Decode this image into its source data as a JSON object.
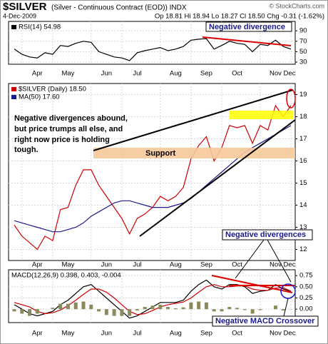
{
  "header": {
    "symbol": "$SILVER",
    "description": "(Silver - Continuous Contract (EOD)) INDX",
    "date": "4-Dec-2009",
    "quote": "Op 18.81 Hi 18.94 Lo 18.27 Cl 18.50 Chg -0.31 (-1.62%)",
    "credit": "© StockCharts.com"
  },
  "annotations": {
    "rsi_note": "Negative divergence",
    "price_note": [
      "Negative divergences abound,",
      "but price trumps all else, and",
      "right now price is holding",
      "tough."
    ],
    "support": "Support",
    "macd_note": "Negative divergences",
    "crossover_note": "Negative MACD Crossover"
  },
  "chart_data": [
    {
      "type": "line",
      "series": [
        {
          "name": "RSI(14) 54.98",
          "color": "#000000",
          "values": [
            55,
            45,
            40,
            38,
            48,
            45,
            62,
            60,
            66,
            70,
            68,
            50,
            45,
            40,
            38,
            33,
            48,
            52,
            55,
            58,
            52,
            55,
            60,
            72,
            74,
            75,
            55,
            62,
            70,
            66,
            64,
            50,
            64,
            62,
            72,
            60,
            55
          ]
        }
      ],
      "ylim": [
        26,
        108
      ],
      "yticks": [
        30,
        50,
        70,
        90
      ],
      "grid": true
    },
    {
      "type": "line",
      "categories": [
        null,
        "Apr",
        null,
        null,
        null,
        "May",
        null,
        null,
        null,
        null,
        "Jun",
        null,
        null,
        null,
        "Jul",
        null,
        null,
        null,
        null,
        "Aug",
        null,
        null,
        null,
        "Sep",
        null,
        null,
        null,
        "Oct",
        null,
        null,
        null,
        null,
        "Nov",
        null,
        null,
        null,
        "Dec"
      ],
      "series": [
        {
          "name": "$SILVER (Daily) 18.50",
          "color": "#cc0000",
          "values": [
            13.1,
            12.6,
            12.3,
            12.0,
            12.6,
            12.4,
            13.8,
            13.9,
            14.9,
            15.6,
            15.6,
            14.9,
            14.4,
            13.9,
            13.4,
            12.7,
            13.4,
            13.6,
            13.9,
            14.4,
            14.2,
            14.4,
            14.8,
            16.1,
            16.7,
            17.1,
            16.0,
            16.6,
            17.6,
            17.5,
            17.6,
            16.8,
            17.6,
            17.4,
            18.5,
            18.0,
            18.5
          ]
        },
        {
          "name": "MA(50) 17.60",
          "color": "#1a1a8c",
          "values": [
            13.3,
            13.2,
            13.1,
            13.0,
            12.9,
            12.8,
            12.8,
            12.9,
            13.0,
            13.2,
            13.5,
            13.7,
            13.9,
            14.1,
            14.2,
            14.2,
            14.1,
            14.0,
            13.9,
            13.9,
            13.9,
            14.0,
            14.1,
            14.3,
            14.6,
            14.9,
            15.2,
            15.5,
            15.8,
            16.1,
            16.4,
            16.6,
            16.8,
            17.0,
            17.2,
            17.4,
            17.6
          ]
        }
      ],
      "ylim": [
        11.5,
        19.5
      ],
      "yticks": [
        12,
        13,
        14,
        15,
        16,
        17,
        18,
        19
      ],
      "grid": true
    },
    {
      "type": "macd",
      "title": "MACD(12,26,9) 0.398, 0.403, -0.004",
      "series": [
        {
          "color": "#000000",
          "values": [
            0.1,
            0.0,
            -0.1,
            -0.15,
            -0.1,
            -0.05,
            0.1,
            0.2,
            0.35,
            0.5,
            0.55,
            0.4,
            0.25,
            0.1,
            -0.05,
            -0.2,
            -0.15,
            -0.05,
            0.05,
            0.15,
            0.15,
            0.15,
            0.2,
            0.4,
            0.55,
            0.65,
            0.5,
            0.45,
            0.55,
            0.55,
            0.5,
            0.35,
            0.4,
            0.42,
            0.55,
            0.45,
            0.398
          ]
        },
        {
          "color": "#cc0000",
          "values": [
            0.15,
            0.1,
            0.05,
            -0.05,
            -0.1,
            -0.08,
            -0.02,
            0.08,
            0.2,
            0.33,
            0.45,
            0.45,
            0.38,
            0.25,
            0.1,
            -0.05,
            -0.12,
            -0.1,
            -0.03,
            0.05,
            0.1,
            0.13,
            0.16,
            0.25,
            0.38,
            0.5,
            0.55,
            0.5,
            0.5,
            0.52,
            0.52,
            0.45,
            0.42,
            0.42,
            0.47,
            0.48,
            0.403
          ]
        },
        {
          "color": "#8a8a5a",
          "bars": true,
          "values": [
            -0.05,
            -0.1,
            -0.15,
            -0.1,
            0.0,
            0.03,
            0.12,
            0.12,
            0.15,
            0.17,
            0.1,
            -0.05,
            -0.13,
            -0.15,
            -0.15,
            -0.15,
            -0.03,
            0.05,
            0.08,
            0.1,
            0.05,
            0.02,
            0.04,
            0.15,
            0.17,
            0.15,
            -0.05,
            -0.05,
            0.05,
            0.03,
            -0.02,
            -0.1,
            -0.02,
            0.0,
            0.08,
            -0.03,
            -0.004
          ]
        }
      ],
      "ylim": [
        -0.3,
        0.88
      ],
      "yticks": [
        0.75,
        {
          "value": 0.5,
          "label": "0.50"
        },
        0.25,
        {
          "value": 0,
          "label": "0.00"
        }
      ],
      "grid": true
    }
  ]
}
